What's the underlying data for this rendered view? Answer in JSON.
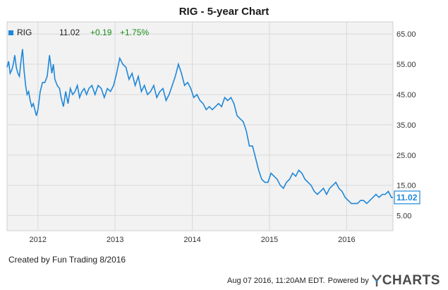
{
  "title": "RIG - 5-year Chart",
  "legend": {
    "symbol": "RIG",
    "price": "11.02",
    "change": "+0.19",
    "change_pct": "+1.75%",
    "color": "#1e87d8"
  },
  "last_label": "11.02",
  "footer": {
    "credit": "Created by Fun Trading 8/2016",
    "timestamp": "Aug 07 2016, 11:20AM EDT.",
    "powered": "Powered by",
    "logo_y": "Y",
    "logo_rest": "CHARTS"
  },
  "colors": {
    "line": "#1e87d8",
    "plot_bg": "#f2f2f2",
    "grid": "#d9d9d9",
    "positive": "#1a8f1a"
  },
  "chart_data": {
    "type": "line",
    "title": "RIG - 5-year Chart",
    "xlabel": "",
    "ylabel": "",
    "ylim": [
      0,
      69
    ],
    "yticks": [
      5,
      15,
      25,
      35,
      45,
      55,
      65
    ],
    "ytick_labels": [
      "5.00",
      "15.00",
      "25.00",
      "35.00",
      "45.00",
      "55.00",
      "65.00"
    ],
    "xlim": [
      2011.6,
      2016.6
    ],
    "xticks": [
      2012,
      2013,
      2014,
      2015,
      2016
    ],
    "xtick_labels": [
      "2012",
      "2013",
      "2014",
      "2015",
      "2016"
    ],
    "grid": true,
    "legend_position": "top-left",
    "series": [
      {
        "name": "RIG",
        "x": [
          2011.6,
          2011.62,
          2011.64,
          2011.66,
          2011.68,
          2011.7,
          2011.72,
          2011.74,
          2011.76,
          2011.78,
          2011.8,
          2011.82,
          2011.84,
          2011.86,
          2011.88,
          2011.9,
          2011.92,
          2011.94,
          2011.96,
          2011.98,
          2012.0,
          2012.03,
          2012.06,
          2012.09,
          2012.12,
          2012.15,
          2012.18,
          2012.2,
          2012.22,
          2012.25,
          2012.28,
          2012.3,
          2012.33,
          2012.36,
          2012.39,
          2012.42,
          2012.45,
          2012.48,
          2012.51,
          2012.54,
          2012.57,
          2012.6,
          2012.63,
          2012.66,
          2012.7,
          2012.74,
          2012.78,
          2012.82,
          2012.86,
          2012.9,
          2012.94,
          2012.98,
          2013.02,
          2013.06,
          2013.1,
          2013.14,
          2013.18,
          2013.22,
          2013.26,
          2013.3,
          2013.34,
          2013.38,
          2013.42,
          2013.46,
          2013.5,
          2013.54,
          2013.58,
          2013.62,
          2013.66,
          2013.7,
          2013.74,
          2013.78,
          2013.82,
          2013.86,
          2013.9,
          2013.94,
          2013.98,
          2014.02,
          2014.06,
          2014.1,
          2014.14,
          2014.18,
          2014.22,
          2014.26,
          2014.3,
          2014.34,
          2014.38,
          2014.42,
          2014.46,
          2014.5,
          2014.54,
          2014.58,
          2014.62,
          2014.66,
          2014.7,
          2014.74,
          2014.78,
          2014.82,
          2014.86,
          2014.9,
          2014.94,
          2014.98,
          2015.02,
          2015.06,
          2015.1,
          2015.14,
          2015.18,
          2015.22,
          2015.26,
          2015.3,
          2015.34,
          2015.38,
          2015.42,
          2015.46,
          2015.5,
          2015.54,
          2015.58,
          2015.62,
          2015.66,
          2015.7,
          2015.74,
          2015.78,
          2015.82,
          2015.86,
          2015.9,
          2015.94,
          2015.98,
          2016.02,
          2016.06,
          2016.1,
          2016.14,
          2016.18,
          2016.22,
          2016.26,
          2016.3,
          2016.34,
          2016.38,
          2016.42,
          2016.46,
          2016.5,
          2016.54,
          2016.58,
          2016.6
        ],
        "y": [
          54,
          56,
          52,
          53,
          55,
          58,
          54,
          52,
          51,
          56,
          60,
          53,
          48,
          45,
          46,
          43,
          41,
          42,
          40,
          38,
          40,
          46,
          49,
          49,
          51,
          58,
          52,
          55,
          50,
          48,
          47,
          44,
          41,
          46,
          42,
          47,
          45,
          46,
          48,
          44,
          46,
          47,
          45,
          47,
          48,
          45,
          48,
          47,
          44,
          47,
          46,
          48,
          52,
          57,
          55,
          54,
          50,
          52,
          48,
          51,
          46,
          48,
          45,
          46,
          48,
          44,
          46,
          47,
          43,
          45,
          48,
          51,
          55,
          52,
          48,
          49,
          47,
          44,
          45,
          43,
          42,
          40,
          41,
          40,
          41,
          42,
          41,
          44,
          43,
          44,
          42,
          38,
          37,
          36,
          33,
          28,
          28,
          24,
          20,
          17,
          16,
          16,
          19,
          18,
          17,
          15,
          14,
          16,
          17,
          19,
          18,
          20,
          19,
          17,
          16,
          15,
          13,
          12,
          13,
          14,
          12,
          14,
          15,
          16,
          14,
          13,
          11,
          10,
          9,
          9,
          9,
          10,
          10,
          9,
          10,
          11,
          12,
          11,
          12,
          12,
          13,
          11,
          11
        ],
        "color": "#1e87d8"
      }
    ]
  }
}
